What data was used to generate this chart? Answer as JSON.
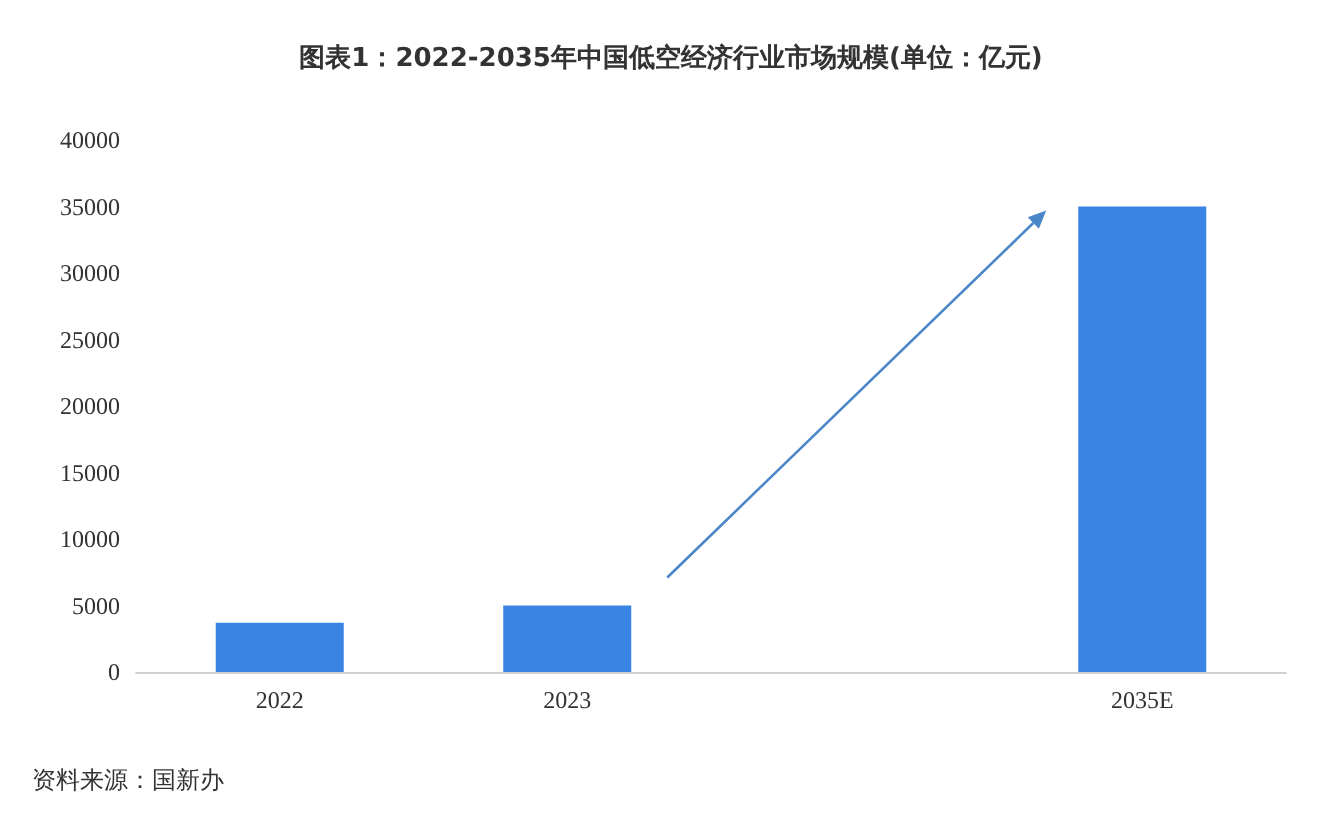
{
  "chart_data": {
    "type": "bar",
    "title": "图表1：2022-2035年中国低空经济行业市场规模(单位：亿元)",
    "categories": [
      "2022",
      "2023",
      null,
      "2035E"
    ],
    "values": [
      3700,
      5000,
      null,
      35000
    ],
    "color": "#3a84e3",
    "ylim": [
      0,
      40000
    ],
    "yticks": [
      0,
      5000,
      10000,
      15000,
      20000,
      25000,
      30000,
      35000,
      40000
    ],
    "annotations": [
      "资料来源：国新办"
    ]
  }
}
